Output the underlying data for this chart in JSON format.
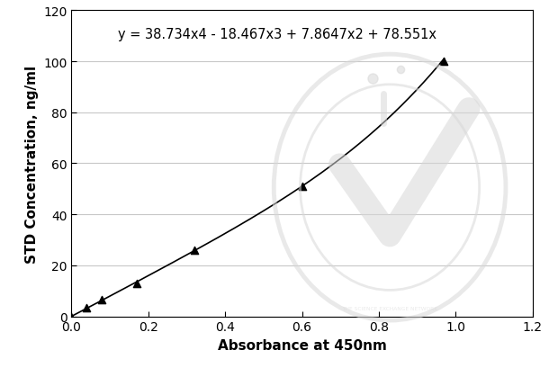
{
  "x_data": [
    0.0,
    0.04,
    0.08,
    0.17,
    0.32,
    0.6,
    0.97
  ],
  "y_data": [
    0.0,
    3.5,
    6.5,
    13.0,
    26.0,
    51.0,
    100.0
  ],
  "equation": "y = 38.734x4 - 18.467x3 + 7.8647x2 + 78.551x",
  "xlabel": "Absorbance at 450nm",
  "ylabel": "STD Concentration, ng/ml",
  "xlim": [
    0.0,
    1.2
  ],
  "ylim": [
    0,
    120
  ],
  "xticks": [
    0.0,
    0.2,
    0.4,
    0.6,
    0.8,
    1.0,
    1.2
  ],
  "yticks": [
    0,
    20,
    40,
    60,
    80,
    100,
    120
  ],
  "grid_color": "#c8c8c8",
  "line_color": "#000000",
  "marker_color": "#000000",
  "bg_color": "#ffffff",
  "equation_fontsize": 10.5,
  "label_fontsize": 11,
  "tick_fontsize": 10,
  "poly_coeffs": [
    38.734,
    -18.467,
    7.8647,
    78.551,
    0.0
  ],
  "watermark_color": "#d8d8d8",
  "watermark_alpha": 0.55
}
